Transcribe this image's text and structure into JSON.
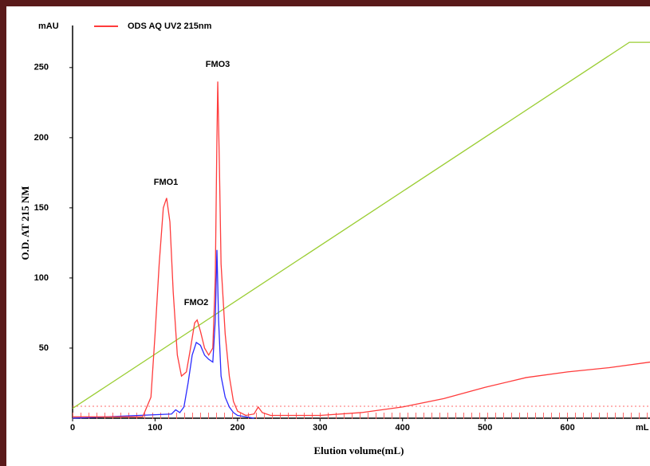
{
  "chart_data": {
    "type": "line",
    "y_unit": "mAU",
    "x_unit": "mL",
    "x_label": "Elution volume(mL)",
    "y_label": "O.D. AT 215 NM",
    "annotations": [
      "FMO1",
      "FMO2",
      "FMO3"
    ],
    "xlim": [
      0,
      700
    ],
    "ylim": [
      0,
      280
    ],
    "xticks": [
      0,
      100,
      200,
      300,
      400,
      500,
      600
    ],
    "yticks": [
      50,
      100,
      150,
      200,
      250
    ],
    "legend": "top-left",
    "series": [
      {
        "name": "ODS AQ UV2 215nm",
        "color": "#ff3b3b",
        "x": [
          0,
          85,
          95,
          100,
          105,
          110,
          114,
          118,
          122,
          127,
          132,
          138,
          143,
          148,
          151,
          155,
          160,
          165,
          170,
          173,
          175,
          176,
          178,
          180,
          185,
          190,
          195,
          200,
          210,
          220,
          225,
          230,
          240,
          300,
          350,
          400,
          450,
          500,
          550,
          600,
          650,
          700
        ],
        "values": [
          1,
          1,
          15,
          60,
          110,
          150,
          157,
          140,
          90,
          45,
          30,
          33,
          50,
          68,
          70,
          62,
          50,
          45,
          50,
          100,
          200,
          240,
          180,
          110,
          60,
          30,
          12,
          5,
          2,
          3,
          8,
          4,
          2,
          2,
          4,
          8,
          14,
          22,
          29,
          33,
          36,
          40
        ]
      },
      {
        "color": "#2a2aff",
        "x": [
          0,
          120,
          125,
          130,
          135,
          140,
          145,
          150,
          155,
          160,
          165,
          170,
          173,
          175,
          177,
          180,
          185,
          190,
          195,
          200,
          210,
          220
        ],
        "values": [
          0,
          3,
          6,
          4,
          8,
          25,
          45,
          54,
          52,
          45,
          42,
          40,
          70,
          120,
          70,
          30,
          15,
          8,
          4,
          2,
          1,
          0
        ]
      },
      {
        "color": "#9acd32",
        "x": [
          0,
          675,
          700
        ],
        "values": [
          7,
          268,
          268
        ]
      }
    ]
  }
}
